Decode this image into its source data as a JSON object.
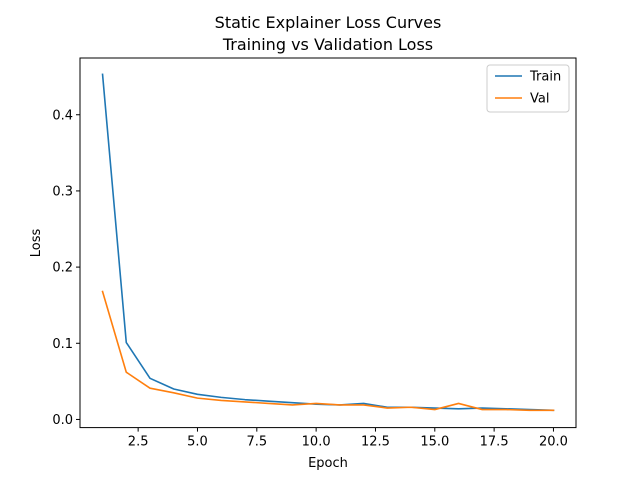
{
  "chart_data": {
    "type": "line",
    "title": "Static Explainer Loss Curves",
    "subtitle": "Training vs Validation Loss",
    "xlabel": "Epoch",
    "ylabel": "Loss",
    "xlim": [
      0.05,
      20.95
    ],
    "ylim": [
      -0.0107,
      0.4745
    ],
    "x_ticks": [
      2.5,
      5.0,
      7.5,
      10.0,
      12.5,
      15.0,
      17.5,
      20.0
    ],
    "x_tick_labels": [
      "2.5",
      "5.0",
      "7.5",
      "10.0",
      "12.5",
      "15.0",
      "17.5",
      "20.0"
    ],
    "y_ticks": [
      0.0,
      0.1,
      0.2,
      0.3,
      0.4
    ],
    "y_tick_labels": [
      "0.0",
      "0.1",
      "0.2",
      "0.3",
      "0.4"
    ],
    "grid": false,
    "legend_position": "top-right",
    "x": [
      1,
      2,
      3,
      4,
      5,
      6,
      7,
      8,
      9,
      10,
      11,
      12,
      13,
      14,
      15,
      16,
      17,
      18,
      19,
      20
    ],
    "series": [
      {
        "name": "Train",
        "color": "#1f77b4",
        "values": [
          0.453,
          0.101,
          0.054,
          0.04,
          0.033,
          0.029,
          0.026,
          0.024,
          0.022,
          0.02,
          0.019,
          0.021,
          0.016,
          0.016,
          0.015,
          0.014,
          0.015,
          0.014,
          0.013,
          0.012
        ]
      },
      {
        "name": "Val",
        "color": "#ff7f0e",
        "values": [
          0.168,
          0.062,
          0.041,
          0.035,
          0.028,
          0.025,
          0.023,
          0.021,
          0.019,
          0.021,
          0.019,
          0.019,
          0.015,
          0.016,
          0.013,
          0.021,
          0.013,
          0.013,
          0.012,
          0.012
        ]
      }
    ]
  }
}
